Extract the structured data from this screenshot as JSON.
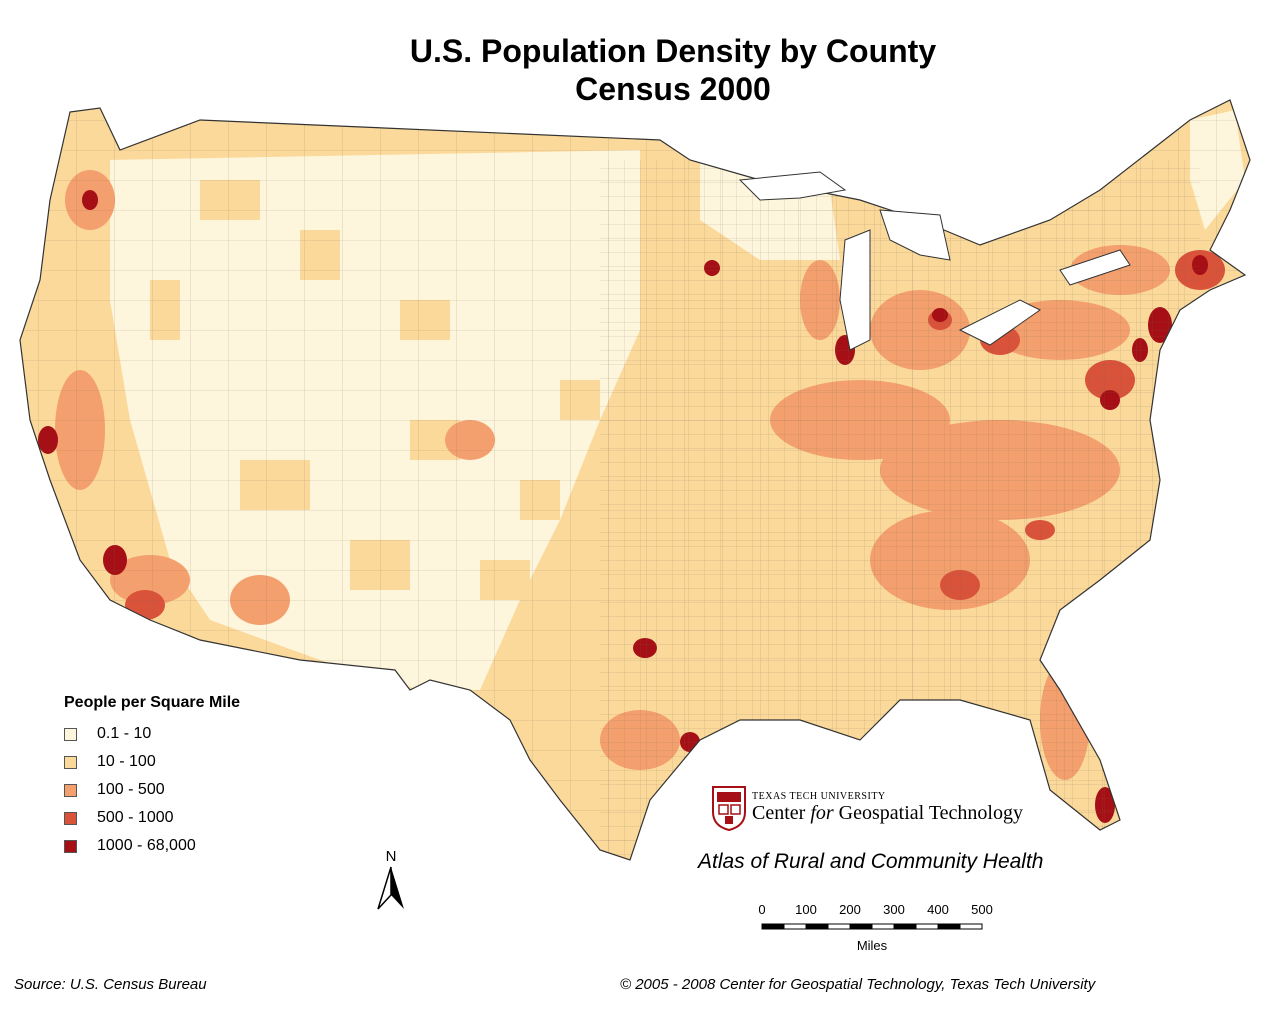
{
  "title": "U.S. Population Density by County",
  "subtitle": "Census 2000",
  "legend": {
    "title": "People per Square Mile",
    "classes": [
      {
        "label": "0.1 - 10",
        "color": "#fdf5dc"
      },
      {
        "label": "10 - 100",
        "color": "#fbd99b"
      },
      {
        "label": "100 - 500",
        "color": "#f39f6e"
      },
      {
        "label": "500 - 1000",
        "color": "#d9523a"
      },
      {
        "label": "1000 - 68,000",
        "color": "#a50f15"
      }
    ]
  },
  "north_label": "N",
  "scale_bar": {
    "ticks": [
      "0",
      "100",
      "200",
      "300",
      "400",
      "500"
    ],
    "unit": "Miles"
  },
  "institution": {
    "line1": "TEXAS TECH UNIVERSITY",
    "line2_pre": "Center ",
    "line2_italic": "for",
    "line2_post": " Geospatial Technology"
  },
  "atlas": "Atlas of Rural and Community Health",
  "source": "Source:  U.S. Census Bureau",
  "copyright": "© 2005 - 2008 Center for Geospatial Technology, Texas Tech University"
}
